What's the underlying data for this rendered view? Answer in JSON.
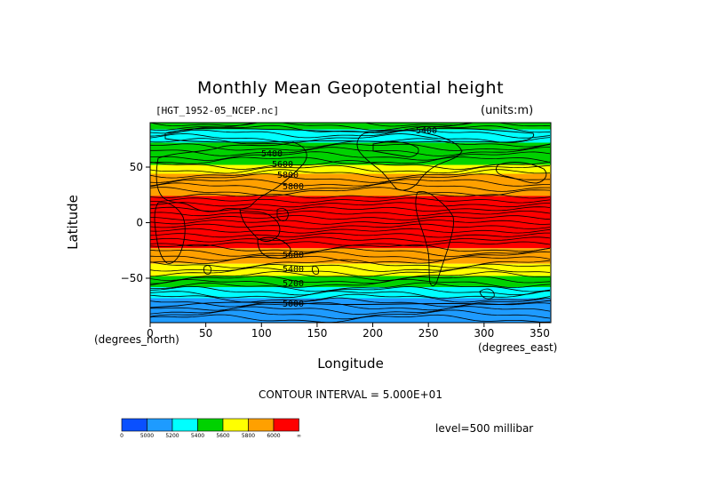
{
  "chart_data": {
    "type": "heatmap",
    "title": "Monthly Mean Geopotential height",
    "file_label": "[HGT_1952-05_NCEP.nc]",
    "units_label": "(units:m)",
    "xlabel": "Longitude",
    "xlabel_units": "(degrees_east)",
    "ylabel": "Latitude",
    "ylabel_units": "(degrees_north)",
    "xlim": [
      0,
      360
    ],
    "ylim": [
      -90,
      90
    ],
    "x_ticks": [
      0,
      50,
      100,
      150,
      200,
      250,
      300,
      350
    ],
    "y_ticks": [
      50,
      0,
      -50
    ],
    "y_tick_labels": [
      "50",
      "0",
      "−50"
    ],
    "contour_interval": "CONTOUR INTERVAL = 5.000E+01",
    "level": "level=500 millibar",
    "contour_labels": [
      "5400",
      "5400",
      "5600",
      "5800",
      "5800",
      "5600",
      "5400",
      "5200",
      "5000"
    ],
    "colorbar": {
      "levels": [
        "0",
        "5000",
        "5200",
        "5400",
        "5600",
        "5800",
        "6000",
        "∞"
      ],
      "colors": [
        "#0a50ff",
        "#1e9bff",
        "#00ffff",
        "#00d200",
        "#ffff00",
        "#ffa000",
        "#ff0000"
      ]
    },
    "bands": [
      {
        "lat_from": 90,
        "lat_to": 84,
        "level": 5400
      },
      {
        "lat_from": 84,
        "lat_to": 72,
        "level": 5200
      },
      {
        "lat_from": 72,
        "lat_to": 52,
        "level": 5400
      },
      {
        "lat_from": 52,
        "lat_to": 44,
        "level": 5600
      },
      {
        "lat_from": 44,
        "lat_to": 24,
        "level": 5800
      },
      {
        "lat_from": 24,
        "lat_to": -23,
        "level": 6000
      },
      {
        "lat_from": -23,
        "lat_to": -37,
        "level": 5800
      },
      {
        "lat_from": -37,
        "lat_to": -48,
        "level": 5600
      },
      {
        "lat_from": -48,
        "lat_to": -58,
        "level": 5400
      },
      {
        "lat_from": -58,
        "lat_to": -68,
        "level": 5200
      },
      {
        "lat_from": -68,
        "lat_to": -90,
        "level": 5000
      }
    ]
  }
}
